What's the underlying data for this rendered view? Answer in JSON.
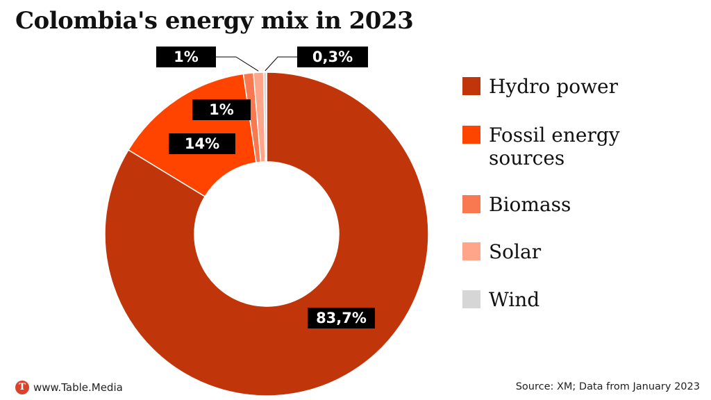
{
  "title": "Colombia's energy mix in 2023",
  "chart_data": {
    "type": "pie",
    "donut": true,
    "title": "Colombia's energy mix in 2023",
    "legend_position": "right",
    "series": [
      {
        "name": "Hydro power",
        "value": 83.7,
        "label": "83,7%",
        "color": "#c0360a"
      },
      {
        "name": "Fossil energy sources",
        "value": 14,
        "label": "14%",
        "color": "#ff4400"
      },
      {
        "name": "Biomass",
        "value": 1,
        "label": "1%",
        "color": "#f87850"
      },
      {
        "name": "Solar",
        "value": 1,
        "label": "1%",
        "color": "#ffa58a"
      },
      {
        "name": "Wind",
        "value": 0.3,
        "label": "0,3%",
        "color": "#d6d6d6"
      }
    ]
  },
  "legend": [
    {
      "label": "Hydro power",
      "color": "#c0360a"
    },
    {
      "label": "Fossil energy sources",
      "color": "#ff4400"
    },
    {
      "label": "Biomass",
      "color": "#f87850"
    },
    {
      "label": "Solar",
      "color": "#ffa58a"
    },
    {
      "label": "Wind",
      "color": "#d6d6d6"
    }
  ],
  "footer": {
    "logo_letter": "T",
    "site": "www.Table.Media",
    "source": "Source: XM; Data from January 2023"
  }
}
